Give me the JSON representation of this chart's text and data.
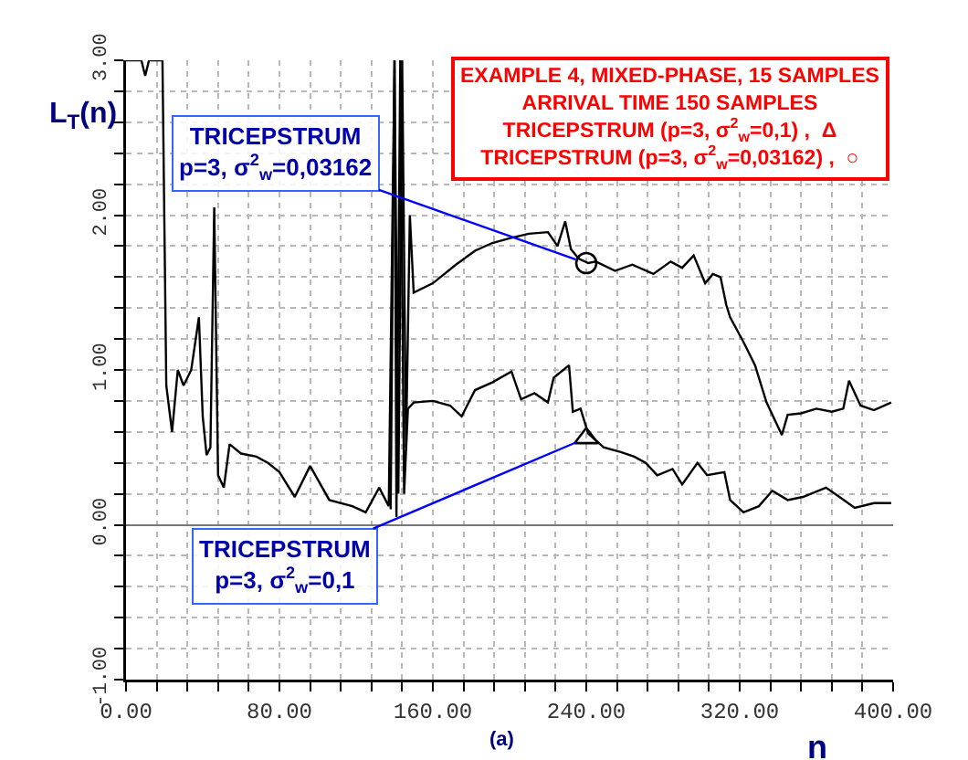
{
  "chart_data": {
    "type": "line",
    "xlabel": "n",
    "ylabel": "L$_{T}$(n)",
    "xlim": [
      0,
      400
    ],
    "ylim": [
      -1,
      3
    ],
    "xticks": [
      {
        "value": 0,
        "label": "0.00"
      },
      {
        "value": 16,
        "label": null
      },
      {
        "value": 32,
        "label": null
      },
      {
        "value": 48,
        "label": null
      },
      {
        "value": 64,
        "label": null
      },
      {
        "value": 80,
        "label": "80.00"
      },
      {
        "value": 96,
        "label": null
      },
      {
        "value": 112,
        "label": null
      },
      {
        "value": 128,
        "label": null
      },
      {
        "value": 144,
        "label": null
      },
      {
        "value": 160,
        "label": "160.00"
      },
      {
        "value": 176,
        "label": null
      },
      {
        "value": 192,
        "label": null
      },
      {
        "value": 208,
        "label": null
      },
      {
        "value": 224,
        "label": null
      },
      {
        "value": 240,
        "label": "240.00"
      },
      {
        "value": 256,
        "label": null
      },
      {
        "value": 272,
        "label": null
      },
      {
        "value": 288,
        "label": null
      },
      {
        "value": 304,
        "label": null
      },
      {
        "value": 320,
        "label": "320.00"
      },
      {
        "value": 336,
        "label": null
      },
      {
        "value": 352,
        "label": null
      },
      {
        "value": 368,
        "label": null
      },
      {
        "value": 384,
        "label": null
      },
      {
        "value": 400,
        "label": "400.00"
      }
    ],
    "yticks": [
      {
        "value": -1,
        "label": "-1.00"
      },
      {
        "value": -0.8,
        "label": null
      },
      {
        "value": -0.6,
        "label": null
      },
      {
        "value": -0.4,
        "label": null
      },
      {
        "value": -0.2,
        "label": null
      },
      {
        "value": 0,
        "label": "0.00"
      },
      {
        "value": 0.2,
        "label": null
      },
      {
        "value": 0.4,
        "label": null
      },
      {
        "value": 0.6,
        "label": null
      },
      {
        "value": 0.8,
        "label": null
      },
      {
        "value": 1,
        "label": "1.00"
      },
      {
        "value": 1.2,
        "label": null
      },
      {
        "value": 1.4,
        "label": null
      },
      {
        "value": 1.6,
        "label": null
      },
      {
        "value": 1.8,
        "label": null
      },
      {
        "value": 2,
        "label": "2.00"
      },
      {
        "value": 2.2,
        "label": null
      },
      {
        "value": 2.4,
        "label": null
      },
      {
        "value": 2.6,
        "label": null
      },
      {
        "value": 2.8,
        "label": null
      },
      {
        "value": 3,
        "label": "3.00"
      }
    ],
    "grid": true,
    "line_style": "solid",
    "series": [
      {
        "color": "#000000",
        "x": [
          0,
          8,
          10,
          12,
          19,
          21,
          24,
          27,
          30,
          34,
          38,
          40,
          42,
          44,
          46,
          48,
          51,
          54,
          60,
          68,
          74,
          80,
          88,
          96,
          106,
          118,
          125,
          132,
          137,
          140,
          141,
          143,
          145,
          147,
          150,
          160,
          169,
          175,
          182,
          191,
          201,
          206,
          213,
          220,
          223,
          231,
          233,
          237,
          241,
          249,
          258,
          265,
          271,
          277,
          285,
          290,
          298,
          303,
          312,
          315,
          322,
          330,
          337,
          345,
          353,
          365,
          372,
          380,
          390,
          399
        ],
        "values": [
          3,
          3,
          2.9,
          3,
          3,
          0.9,
          0.6,
          1.0,
          0.9,
          1.0,
          1.34,
          0.7,
          0.45,
          0.5,
          2.05,
          0.32,
          0.24,
          0.52,
          0.46,
          0.44,
          0.4,
          0.34,
          0.18,
          0.38,
          0.16,
          0.12,
          0.08,
          0.24,
          0.12,
          3,
          0.05,
          3,
          0.2,
          0.75,
          0.79,
          0.8,
          0.77,
          0.7,
          0.87,
          0.92,
          0.99,
          0.81,
          0.85,
          0.79,
          0.95,
          1.03,
          0.73,
          0.75,
          0.59,
          0.5,
          0.47,
          0.44,
          0.4,
          0.32,
          0.36,
          0.26,
          0.4,
          0.32,
          0.34,
          0.16,
          0.08,
          0.12,
          0.22,
          0.16,
          0.18,
          0.24,
          0.18,
          0.11,
          0.14,
          0.14
        ]
      },
      {
        "color": "#000000",
        "x": [
          138,
          140,
          142,
          144,
          146,
          148,
          150,
          160,
          172,
          182,
          191,
          200,
          210,
          220,
          225,
          229,
          232,
          236,
          241,
          245,
          255,
          264,
          275,
          284,
          290,
          296,
          302,
          306,
          310,
          313,
          315,
          322,
          328,
          334,
          342,
          345,
          352,
          360,
          368,
          374,
          377,
          383,
          390,
          399
        ],
        "values": [
          0.1,
          3,
          0.2,
          3,
          0.5,
          2.0,
          1.5,
          1.56,
          1.68,
          1.77,
          1.82,
          1.85,
          1.88,
          1.89,
          1.8,
          1.96,
          1.78,
          1.72,
          1.69,
          1.7,
          1.64,
          1.68,
          1.62,
          1.7,
          1.66,
          1.74,
          1.56,
          1.62,
          1.6,
          1.42,
          1.34,
          1.18,
          1.03,
          0.79,
          0.58,
          0.71,
          0.72,
          0.75,
          0.73,
          0.75,
          0.93,
          0.77,
          0.74,
          0.79
        ]
      },
      {
        "type": "scatter",
        "marker": "triangle",
        "color": "#000000",
        "x": [
          240
        ],
        "values": [
          0.56
        ]
      },
      {
        "type": "scatter",
        "marker": "circle",
        "color": "#000000",
        "x": [
          240
        ],
        "values": [
          1.69
        ]
      }
    ],
    "annotations": [
      {
        "text": "TRICEPSTRUM\np=3, σ$^{2}$$_{w}$=0,03162",
        "x": 240,
        "y": 1.69
      },
      {
        "text": "TRICEPSTRUM\np=3, σ$^{2}$$_{w}$=0,1",
        "x": 240,
        "y": 0.56
      },
      "EXAMPLE 4, MIXED-PHASE, 15 SAMPLES\nARRIVAL TIME 150 SAMPLES\nTRICEPSTRUM (p=3, σ$^{2}$$_{w}$=0,1) ,  Δ\nTRICEPSTRUM (p=3, σ$^{2}$$_{w}$=0,03162) ,  ○",
      "(a)"
    ]
  }
}
